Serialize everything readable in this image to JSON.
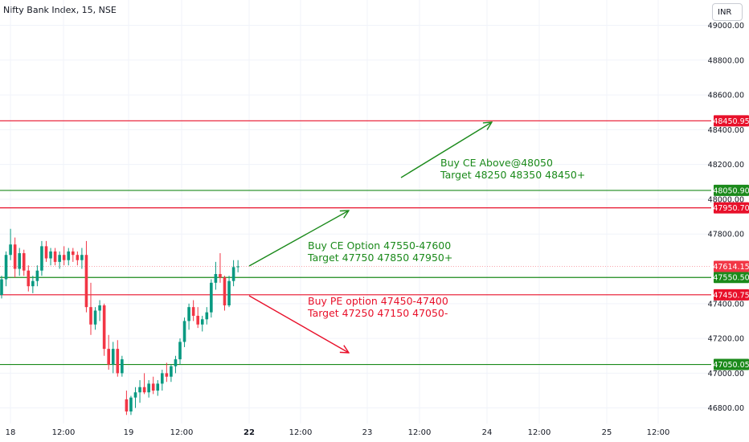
{
  "header": {
    "symbol_title": "Nifty Bank Index, 15, NSE",
    "currency_label": "INR"
  },
  "colors": {
    "up": "#089981",
    "down": "#f23645",
    "green_line": "#1b8a1b",
    "red_line": "#e8102a",
    "axis_text": "#131722",
    "grid": "#f0f3fa"
  },
  "chart_data": {
    "type": "candlestick",
    "y_range": [
      46720,
      49030
    ],
    "y_ticks": [
      {
        "value": 46800,
        "label": "46800.00"
      },
      {
        "value": 47000,
        "label": "47000.00"
      },
      {
        "value": 47200,
        "label": "47200.00"
      },
      {
        "value": 47400,
        "label": "47400.00"
      },
      {
        "value": 47800,
        "label": "47800.00"
      },
      {
        "value": 48000,
        "label": "48000.00"
      },
      {
        "value": 48200,
        "label": "48200.00"
      },
      {
        "value": 48400,
        "label": "48400.00"
      },
      {
        "value": 48600,
        "label": "48600.00"
      },
      {
        "value": 48800,
        "label": "48800.00"
      },
      {
        "value": 49000,
        "label": "49000.00"
      }
    ],
    "x_ticks": [
      {
        "label": "18",
        "bold": false
      },
      {
        "label": "12:00",
        "bold": false
      },
      {
        "label": "19",
        "bold": false
      },
      {
        "label": "12:00",
        "bold": false
      },
      {
        "label": "22",
        "bold": true
      },
      {
        "label": "12:00",
        "bold": false
      },
      {
        "label": "23",
        "bold": false
      },
      {
        "label": "12:00",
        "bold": false
      },
      {
        "label": "24",
        "bold": false
      },
      {
        "label": "12:00",
        "bold": false
      },
      {
        "label": "25",
        "bold": false
      },
      {
        "label": "12:00",
        "bold": false
      }
    ],
    "levels": [
      {
        "value": 48450.95,
        "label": "48450.95",
        "color": "red"
      },
      {
        "value": 48050.9,
        "label": "48050.90",
        "color": "green"
      },
      {
        "value": 47950.7,
        "label": "47950.70",
        "color": "red"
      },
      {
        "value": 47550.5,
        "label": "47550.50",
        "color": "green"
      },
      {
        "value": 47450.75,
        "label": "47450.75",
        "color": "red"
      },
      {
        "value": 47050.05,
        "label": "47050.05",
        "color": "green"
      }
    ],
    "last_price": {
      "value": 47614.15,
      "label": "47614.15"
    },
    "annotations": [
      {
        "lines": [
          "Buy CE Above@48050",
          "Target 48250 48350 48450+"
        ],
        "color": "green"
      },
      {
        "lines": [
          "Buy CE Option 47550-47600",
          "Target  47750 47850 47950+"
        ],
        "color": "green"
      },
      {
        "lines": [
          "Buy PE option 47450-47400",
          "Target 47250 47150 47050-"
        ],
        "color": "red"
      }
    ],
    "candles": [
      [
        47450,
        47560,
        47430,
        47540
      ],
      [
        47540,
        47700,
        47500,
        47680
      ],
      [
        47680,
        47830,
        47650,
        47740
      ],
      [
        47740,
        47780,
        47550,
        47600
      ],
      [
        47600,
        47720,
        47560,
        47690
      ],
      [
        47690,
        47710,
        47560,
        47590
      ],
      [
        47590,
        47620,
        47470,
        47500
      ],
      [
        47500,
        47560,
        47460,
        47530
      ],
      [
        47530,
        47620,
        47500,
        47590
      ],
      [
        47590,
        47760,
        47560,
        47730
      ],
      [
        47730,
        47760,
        47640,
        47660
      ],
      [
        47660,
        47720,
        47620,
        47700
      ],
      [
        47700,
        47720,
        47620,
        47640
      ],
      [
        47640,
        47700,
        47600,
        47680
      ],
      [
        47680,
        47730,
        47620,
        47650
      ],
      [
        47650,
        47720,
        47620,
        47700
      ],
      [
        47700,
        47720,
        47640,
        47680
      ],
      [
        47680,
        47700,
        47620,
        47650
      ],
      [
        47650,
        47720,
        47600,
        47680
      ],
      [
        47680,
        47760,
        47350,
        47380
      ],
      [
        47380,
        47520,
        47220,
        47280
      ],
      [
        47280,
        47380,
        47250,
        47360
      ],
      [
        47360,
        47420,
        47300,
        47390
      ],
      [
        47390,
        47400,
        47100,
        47140
      ],
      [
        47140,
        47220,
        47020,
        47050
      ],
      [
        47050,
        47180,
        47000,
        47140
      ],
      [
        47140,
        47190,
        46980,
        47000
      ],
      [
        47000,
        47100,
        46980,
        47080
      ],
      [
        46850,
        46900,
        46760,
        46780
      ],
      [
        46780,
        46870,
        46760,
        46860
      ],
      [
        46860,
        46920,
        46800,
        46890
      ],
      [
        46890,
        46960,
        46830,
        46920
      ],
      [
        46920,
        47000,
        46880,
        46890
      ],
      [
        46890,
        46960,
        46860,
        46940
      ],
      [
        46940,
        46980,
        46880,
        46900
      ],
      [
        46900,
        46960,
        46870,
        46940
      ],
      [
        46940,
        47020,
        46900,
        47000
      ],
      [
        47000,
        47060,
        46950,
        46980
      ],
      [
        46980,
        47050,
        46950,
        47040
      ],
      [
        47040,
        47100,
        47000,
        47080
      ],
      [
        47080,
        47200,
        47050,
        47180
      ],
      [
        47180,
        47320,
        47150,
        47300
      ],
      [
        47300,
        47400,
        47250,
        47380
      ],
      [
        47380,
        47420,
        47300,
        47330
      ],
      [
        47330,
        47380,
        47260,
        47280
      ],
      [
        47280,
        47330,
        47240,
        47310
      ],
      [
        47310,
        47380,
        47280,
        47350
      ],
      [
        47350,
        47540,
        47320,
        47520
      ],
      [
        47520,
        47640,
        47480,
        47570
      ],
      [
        47570,
        47690,
        47520,
        47550
      ],
      [
        47550,
        47560,
        47360,
        47390
      ],
      [
        47390,
        47560,
        47380,
        47530
      ],
      [
        47530,
        47650,
        47500,
        47610
      ],
      [
        47610,
        47650,
        47580,
        47614
      ]
    ]
  }
}
